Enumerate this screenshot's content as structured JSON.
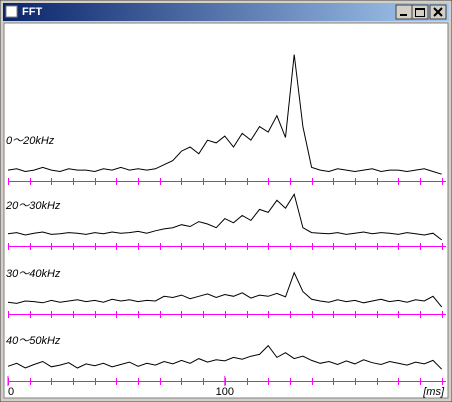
{
  "window": {
    "title": "FFT"
  },
  "chart_data": [
    {
      "type": "line",
      "title": "0〜20kHz",
      "color": "#000000",
      "axis_color": "#ff00ff",
      "xlim": [
        0,
        202
      ],
      "ylim": [
        0,
        100
      ],
      "minor_tick_step": 10,
      "x": [
        0,
        4,
        8,
        12,
        16,
        20,
        24,
        28,
        32,
        36,
        40,
        44,
        48,
        52,
        56,
        60,
        64,
        68,
        72,
        76,
        80,
        84,
        88,
        92,
        96,
        100,
        104,
        108,
        112,
        116,
        120,
        124,
        128,
        132,
        136,
        140,
        144,
        148,
        152,
        156,
        160,
        164,
        168,
        172,
        176,
        180,
        184,
        188,
        192,
        196,
        200
      ],
      "values": [
        8,
        9,
        7,
        8,
        10,
        8,
        7,
        9,
        8,
        8,
        7,
        9,
        8,
        10,
        8,
        9,
        8,
        9,
        12,
        15,
        22,
        25,
        20,
        30,
        28,
        33,
        25,
        35,
        30,
        40,
        36,
        48,
        32,
        93,
        40,
        10,
        8,
        7,
        9,
        8,
        7,
        8,
        9,
        7,
        8,
        8,
        7,
        8,
        9,
        7,
        5
      ]
    },
    {
      "type": "line",
      "title": "20〜30kHz",
      "color": "#000000",
      "axis_color": "#ff00ff",
      "xlim": [
        0,
        202
      ],
      "ylim": [
        0,
        100
      ],
      "minor_tick_step": 10,
      "x": [
        0,
        4,
        8,
        12,
        16,
        20,
        24,
        28,
        32,
        36,
        40,
        44,
        48,
        52,
        56,
        60,
        64,
        68,
        72,
        76,
        80,
        84,
        88,
        92,
        96,
        100,
        104,
        108,
        112,
        116,
        120,
        124,
        128,
        132,
        136,
        140,
        144,
        148,
        152,
        156,
        160,
        164,
        168,
        172,
        176,
        180,
        184,
        188,
        192,
        196,
        200
      ],
      "values": [
        20,
        22,
        18,
        21,
        23,
        19,
        20,
        22,
        21,
        19,
        22,
        20,
        23,
        21,
        22,
        24,
        21,
        25,
        28,
        30,
        35,
        32,
        40,
        36,
        30,
        45,
        38,
        50,
        42,
        60,
        55,
        75,
        62,
        85,
        30,
        22,
        21,
        20,
        22,
        19,
        21,
        23,
        20,
        22,
        21,
        19,
        22,
        20,
        18,
        21,
        10
      ]
    },
    {
      "type": "line",
      "title": "30〜40kHz",
      "color": "#000000",
      "axis_color": "#ff00ff",
      "xlim": [
        0,
        202
      ],
      "ylim": [
        0,
        100
      ],
      "minor_tick_step": 10,
      "x": [
        0,
        4,
        8,
        12,
        16,
        20,
        24,
        28,
        32,
        36,
        40,
        44,
        48,
        52,
        56,
        60,
        64,
        68,
        72,
        76,
        80,
        84,
        88,
        92,
        96,
        100,
        104,
        108,
        112,
        116,
        120,
        124,
        128,
        132,
        136,
        140,
        144,
        148,
        152,
        156,
        160,
        164,
        168,
        172,
        176,
        180,
        184,
        188,
        192,
        196,
        200
      ],
      "values": [
        20,
        18,
        22,
        21,
        19,
        23,
        20,
        22,
        24,
        21,
        23,
        20,
        25,
        22,
        24,
        21,
        23,
        22,
        30,
        28,
        32,
        26,
        30,
        34,
        28,
        33,
        30,
        36,
        27,
        32,
        30,
        35,
        29,
        70,
        38,
        25,
        22,
        20,
        24,
        21,
        23,
        19,
        22,
        25,
        21,
        23,
        20,
        24,
        22,
        30,
        12
      ]
    },
    {
      "type": "line",
      "title": "40〜50kHz",
      "color": "#000000",
      "axis_color": "#ff00ff",
      "xlim": [
        0,
        202
      ],
      "ylim": [
        0,
        100
      ],
      "minor_tick_step": 10,
      "xticks": [
        0,
        100
      ],
      "xlabel": "[ms]",
      "x": [
        0,
        4,
        8,
        12,
        16,
        20,
        24,
        28,
        32,
        36,
        40,
        44,
        48,
        52,
        56,
        60,
        64,
        68,
        72,
        76,
        80,
        84,
        88,
        92,
        96,
        100,
        104,
        108,
        112,
        116,
        120,
        124,
        128,
        132,
        136,
        140,
        144,
        148,
        152,
        156,
        160,
        164,
        168,
        172,
        176,
        180,
        184,
        188,
        192,
        196,
        200
      ],
      "values": [
        25,
        30,
        22,
        28,
        33,
        24,
        27,
        31,
        22,
        29,
        26,
        30,
        24,
        28,
        32,
        25,
        30,
        27,
        33,
        29,
        35,
        30,
        38,
        32,
        36,
        34,
        40,
        37,
        42,
        45,
        60,
        40,
        48,
        38,
        42,
        35,
        30,
        33,
        28,
        34,
        29,
        36,
        31,
        28,
        33,
        30,
        27,
        32,
        29,
        35,
        20
      ]
    }
  ]
}
